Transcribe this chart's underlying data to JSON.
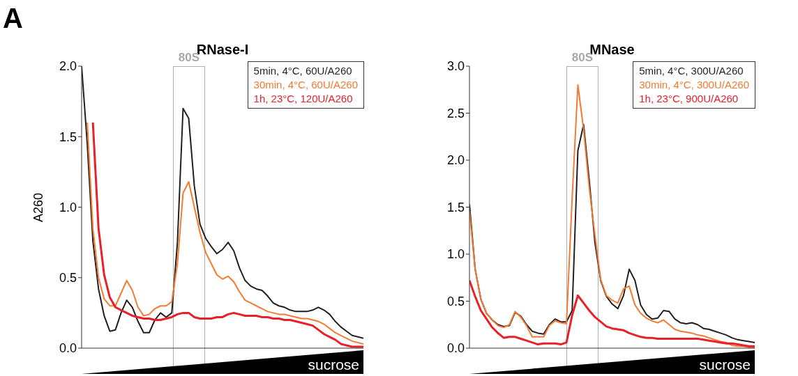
{
  "chart_data": [
    {
      "type": "line",
      "title": "RNase-I",
      "ylabel": "A260",
      "annotations": [
        "A",
        "80S",
        "sucrose"
      ],
      "ylim": [
        0,
        2
      ],
      "yticks": [
        {
          "value": 0,
          "label": "0.0"
        },
        {
          "value": 0.5,
          "label": "0.5"
        },
        {
          "value": 1,
          "label": "1.0"
        },
        {
          "value": 1.5,
          "label": "1.5"
        },
        {
          "value": 2,
          "label": "2.0"
        }
      ],
      "tick_labels": "y",
      "categories": [
        null,
        null,
        null,
        null,
        null,
        null,
        null,
        null,
        null,
        null,
        null,
        null,
        null,
        null,
        null,
        null,
        null,
        null,
        null,
        null,
        null,
        null,
        null,
        null,
        null,
        null,
        null,
        null,
        null,
        null,
        null,
        null,
        null,
        null,
        null,
        null,
        null,
        null,
        null,
        null,
        null,
        null,
        null,
        null,
        null,
        null,
        null,
        null,
        null,
        null,
        null
      ],
      "series": [
        {
          "name": "5min, 4°C, 60U/A260",
          "color": "#231f20",
          "values": [
            2.0,
            1.45,
            0.76,
            0.42,
            0.23,
            0.12,
            0.13,
            0.25,
            0.34,
            0.29,
            0.19,
            0.11,
            0.11,
            0.2,
            0.25,
            0.22,
            0.25,
            0.75,
            1.7,
            1.63,
            1.15,
            0.88,
            0.78,
            0.72,
            0.67,
            0.7,
            0.75,
            0.69,
            0.57,
            0.48,
            0.44,
            0.42,
            0.41,
            0.37,
            0.32,
            0.3,
            0.29,
            0.27,
            0.26,
            0.26,
            0.26,
            0.27,
            0.29,
            0.27,
            0.24,
            0.19,
            0.15,
            0.12,
            0.09,
            0.08,
            0.07
          ]
        },
        {
          "name": "30min, 4°C, 60U/A260",
          "color": "#f47a30",
          "values": [
            null,
            1.6,
            0.85,
            0.5,
            0.35,
            0.3,
            0.3,
            0.39,
            0.48,
            0.41,
            0.29,
            0.23,
            0.24,
            0.28,
            0.3,
            0.3,
            0.33,
            0.6,
            1.1,
            1.18,
            1.0,
            0.82,
            0.68,
            0.6,
            0.52,
            0.49,
            0.51,
            0.47,
            0.4,
            0.34,
            0.32,
            0.3,
            0.28,
            0.26,
            0.25,
            0.24,
            0.24,
            0.23,
            0.22,
            0.21,
            0.21,
            0.2,
            0.19,
            0.17,
            0.14,
            0.11,
            0.09,
            0.07,
            0.05,
            0.04,
            0.03
          ]
        },
        {
          "name": "1h, 23°C, 120U/A260",
          "color": "#e8202a",
          "values": [
            null,
            null,
            1.6,
            0.85,
            0.52,
            0.36,
            0.29,
            0.27,
            0.25,
            0.23,
            0.22,
            0.21,
            0.21,
            0.2,
            0.2,
            0.21,
            0.22,
            0.24,
            0.25,
            0.25,
            0.22,
            0.21,
            0.21,
            0.21,
            0.22,
            0.22,
            0.24,
            0.25,
            0.24,
            0.23,
            0.23,
            0.23,
            0.22,
            0.22,
            0.21,
            0.21,
            0.2,
            0.2,
            0.19,
            0.18,
            0.17,
            0.16,
            0.13,
            0.1,
            0.08,
            0.06,
            0.03,
            0.02,
            0.01,
            0.01,
            0.01
          ]
        }
      ]
    },
    {
      "type": "line",
      "title": "MNase",
      "annotations": [
        "80S",
        "sucrose"
      ],
      "ylim": [
        0,
        3
      ],
      "yticks": [
        {
          "value": 0,
          "label": "0.0"
        },
        {
          "value": 0.5,
          "label": "0.5"
        },
        {
          "value": 1,
          "label": "1.0"
        },
        {
          "value": 1.5,
          "label": "1.5"
        },
        {
          "value": 2,
          "label": "2.0"
        },
        {
          "value": 2.5,
          "label": "2.5"
        },
        {
          "value": 3,
          "label": "3.0"
        }
      ],
      "tick_labels": "y",
      "categories": [
        null,
        null,
        null,
        null,
        null,
        null,
        null,
        null,
        null,
        null,
        null,
        null,
        null,
        null,
        null,
        null,
        null,
        null,
        null,
        null,
        null,
        null,
        null,
        null,
        null,
        null,
        null,
        null,
        null,
        null,
        null,
        null,
        null,
        null,
        null,
        null,
        null,
        null,
        null,
        null,
        null,
        null,
        null,
        null,
        null,
        null,
        null,
        null,
        null,
        null,
        null
      ],
      "series": [
        {
          "name": "5min, 4°C, 300U/A260",
          "color": "#231f20",
          "values": [
            1.53,
            0.84,
            0.52,
            0.37,
            0.3,
            0.25,
            0.23,
            0.24,
            0.38,
            0.34,
            0.25,
            0.18,
            0.16,
            0.15,
            0.25,
            0.31,
            0.28,
            0.28,
            0.4,
            2.1,
            2.38,
            1.78,
            1.12,
            0.72,
            0.55,
            0.47,
            0.42,
            0.56,
            0.84,
            0.72,
            0.46,
            0.36,
            0.31,
            0.32,
            0.4,
            0.39,
            0.31,
            0.27,
            0.26,
            0.27,
            0.25,
            0.21,
            0.2,
            0.18,
            0.16,
            0.14,
            0.11,
            0.09,
            0.08,
            0.07,
            0.06
          ]
        },
        {
          "name": "30min, 4°C, 300U/A260",
          "color": "#f47a30",
          "values": [
            1.46,
            0.84,
            0.52,
            0.37,
            0.3,
            0.24,
            0.22,
            0.25,
            0.39,
            0.33,
            0.24,
            0.12,
            0.12,
            0.12,
            0.24,
            0.29,
            0.27,
            0.26,
            1.6,
            2.8,
            2.33,
            1.7,
            1.2,
            0.73,
            0.56,
            0.51,
            0.48,
            0.63,
            0.66,
            0.46,
            0.37,
            0.32,
            0.29,
            0.27,
            0.3,
            0.25,
            0.2,
            0.18,
            0.17,
            0.16,
            0.14,
            0.13,
            0.11,
            0.09,
            0.07,
            0.06,
            0.03,
            0.02,
            0.02,
            0.01,
            0.01
          ]
        },
        {
          "name": "1h, 23°C, 900U/A260",
          "color": "#e8202a",
          "values": [
            0.72,
            0.55,
            0.4,
            0.31,
            0.22,
            0.16,
            0.11,
            0.12,
            0.12,
            0.1,
            0.08,
            0.06,
            0.04,
            0.05,
            0.05,
            0.05,
            0.04,
            0.06,
            0.35,
            0.56,
            0.48,
            0.4,
            0.33,
            0.28,
            0.23,
            0.21,
            0.2,
            0.19,
            0.16,
            0.14,
            0.12,
            0.11,
            0.11,
            0.1,
            0.1,
            0.1,
            0.1,
            0.1,
            0.1,
            0.1,
            0.1,
            0.09,
            0.08,
            0.07,
            0.06,
            0.05,
            0.05,
            0.04,
            0.03,
            0.02,
            0.02
          ]
        }
      ]
    }
  ]
}
